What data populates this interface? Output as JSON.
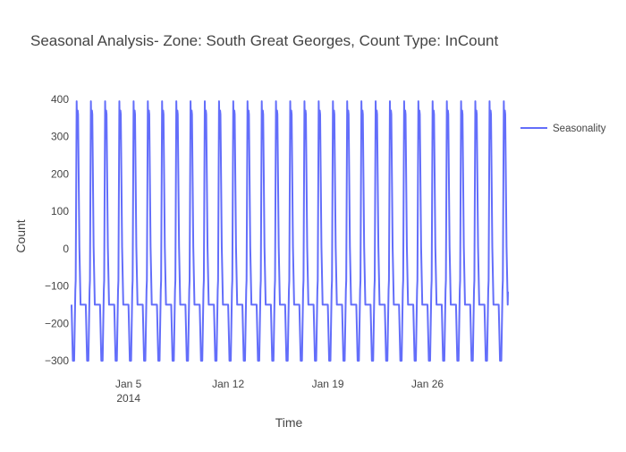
{
  "chart_data": {
    "type": "line",
    "title": "Seasonal Analysis- Zone: South Great Georges, Count Type: InCount",
    "xlabel": "Time",
    "ylabel": "Count",
    "x_range": [
      "2014-01-01",
      "2014-01-31"
    ],
    "ylim": [
      -300,
      400
    ],
    "y_ticks": [
      -300,
      -200,
      -100,
      0,
      100,
      200,
      300,
      400
    ],
    "x_ticks": [
      {
        "date": "2014-01-05",
        "label": "Jan 5",
        "sublabel": "2014"
      },
      {
        "date": "2014-01-12",
        "label": "Jan 12",
        "sublabel": ""
      },
      {
        "date": "2014-01-19",
        "label": "Jan 19",
        "sublabel": ""
      },
      {
        "date": "2014-01-26",
        "label": "Jan 26",
        "sublabel": ""
      }
    ],
    "grid": false,
    "legend_position": "top-right",
    "series": [
      {
        "name": "Seasonality",
        "color": "#636efa",
        "period_days": 1,
        "daily_pattern": [
          {
            "hour": 0,
            "value": -150
          },
          {
            "hour": 2.2,
            "value": -300
          },
          {
            "hour": 4.4,
            "value": -300
          },
          {
            "hour": 6.4,
            "value": -110
          },
          {
            "hour": 7.0,
            "value": -85
          },
          {
            "hour": 8.6,
            "value": 395
          },
          {
            "hour": 9.6,
            "value": 295
          },
          {
            "hour": 10.4,
            "value": 370
          },
          {
            "hour": 11.0,
            "value": 360
          },
          {
            "hour": 13.2,
            "value": 5
          },
          {
            "hour": 15.2,
            "value": -150
          }
        ],
        "end_value": -115
      }
    ]
  }
}
